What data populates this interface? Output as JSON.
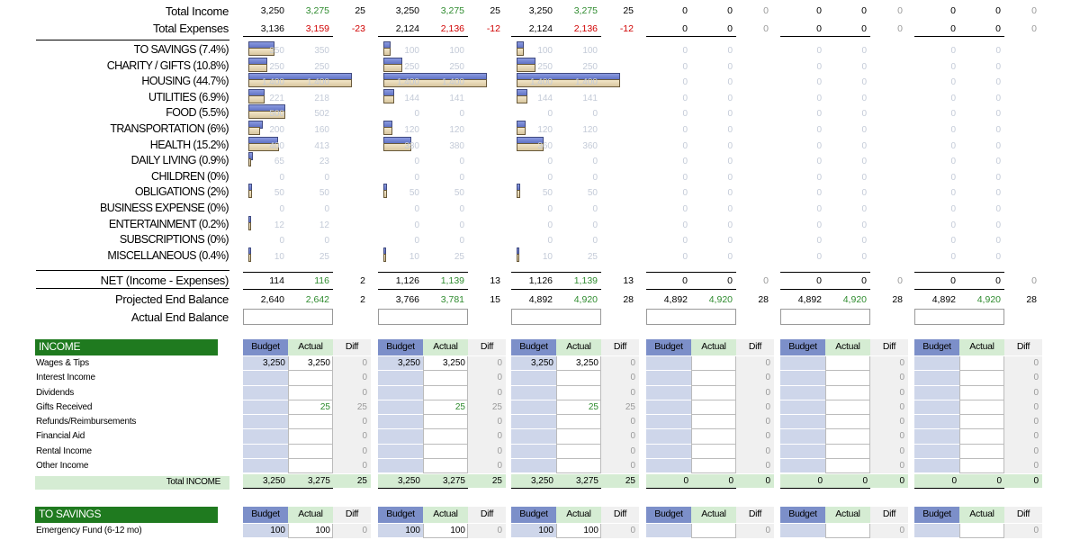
{
  "summary": {
    "total_income_label": "Total Income",
    "total_expenses_label": "Total Expenses",
    "net_label": "NET (Income - Expenses)",
    "projected_label": "Projected End Balance",
    "actual_end_label": "Actual End Balance",
    "months": [
      {
        "income": [
          "3,250",
          "3,275",
          "25"
        ],
        "expenses": [
          "3,136",
          "3,159",
          "-23"
        ],
        "net": [
          "114",
          "116",
          "2"
        ],
        "projected": [
          "2,640",
          "2,642",
          "2"
        ]
      },
      {
        "income": [
          "3,250",
          "3,275",
          "25"
        ],
        "expenses": [
          "2,124",
          "2,136",
          "-12"
        ],
        "net": [
          "1,126",
          "1,139",
          "13"
        ],
        "projected": [
          "3,766",
          "3,781",
          "15"
        ]
      },
      {
        "income": [
          "3,250",
          "3,275",
          "25"
        ],
        "expenses": [
          "2,124",
          "2,136",
          "-12"
        ],
        "net": [
          "1,126",
          "1,139",
          "13"
        ],
        "projected": [
          "4,892",
          "4,920",
          "28"
        ]
      },
      {
        "income": [
          "0",
          "0",
          "0"
        ],
        "expenses": [
          "0",
          "0",
          "0"
        ],
        "net": [
          "0",
          "0",
          "0"
        ],
        "projected": [
          "4,892",
          "4,920",
          "28"
        ]
      },
      {
        "income": [
          "0",
          "0",
          "0"
        ],
        "expenses": [
          "0",
          "0",
          "0"
        ],
        "net": [
          "0",
          "0",
          "0"
        ],
        "projected": [
          "4,892",
          "4,920",
          "28"
        ]
      },
      {
        "income": [
          "0",
          "0",
          "0"
        ],
        "expenses": [
          "0",
          "0",
          "0"
        ],
        "net": [
          "0",
          "0",
          "0"
        ],
        "projected": [
          "4,892",
          "4,920",
          "28"
        ]
      }
    ]
  },
  "categories": [
    {
      "label": "TO SAVINGS (7.4%)",
      "vals": [
        [
          "350",
          "350"
        ],
        [
          "100",
          "100"
        ],
        [
          "100",
          "100"
        ]
      ]
    },
    {
      "label": "CHARITY / GIFTS (10.8%)",
      "vals": [
        [
          "250",
          "250"
        ],
        [
          "250",
          "250"
        ],
        [
          "250",
          "250"
        ]
      ]
    },
    {
      "label": "HOUSING (44.7%)",
      "vals": [
        [
          "1,400",
          "1,400"
        ],
        [
          "1,400",
          "1,400"
        ],
        [
          "1,400",
          "1,400"
        ]
      ]
    },
    {
      "label": "UTILITIES (6.9%)",
      "vals": [
        [
          "221",
          "218"
        ],
        [
          "144",
          "141"
        ],
        [
          "144",
          "141"
        ]
      ]
    },
    {
      "label": "FOOD (5.5%)",
      "vals": [
        [
          "500",
          "502"
        ],
        [
          "0",
          "0"
        ],
        [
          "0",
          "0"
        ]
      ]
    },
    {
      "label": "TRANSPORTATION (6%)",
      "vals": [
        [
          "200",
          "160"
        ],
        [
          "120",
          "120"
        ],
        [
          "120",
          "120"
        ]
      ]
    },
    {
      "label": "HEALTH (15.2%)",
      "vals": [
        [
          "400",
          "413"
        ],
        [
          "380",
          "380"
        ],
        [
          "360",
          "360"
        ]
      ]
    },
    {
      "label": "DAILY LIVING (0.9%)",
      "vals": [
        [
          "65",
          "23"
        ],
        [
          "0",
          "0"
        ],
        [
          "0",
          "0"
        ]
      ]
    },
    {
      "label": "CHILDREN (0%)",
      "vals": [
        [
          "0",
          "0"
        ],
        [
          "0",
          "0"
        ],
        [
          "0",
          "0"
        ]
      ]
    },
    {
      "label": "OBLIGATIONS (2%)",
      "vals": [
        [
          "50",
          "50"
        ],
        [
          "50",
          "50"
        ],
        [
          "50",
          "50"
        ]
      ]
    },
    {
      "label": "BUSINESS EXPENSE (0%)",
      "vals": [
        [
          "0",
          "0"
        ],
        [
          "0",
          "0"
        ],
        [
          "0",
          "0"
        ]
      ]
    },
    {
      "label": "ENTERTAINMENT (0.2%)",
      "vals": [
        [
          "12",
          "12"
        ],
        [
          "0",
          "0"
        ],
        [
          "0",
          "0"
        ]
      ]
    },
    {
      "label": "SUBSCRIPTIONS (0%)",
      "vals": [
        [
          "0",
          "0"
        ],
        [
          "0",
          "0"
        ],
        [
          "0",
          "0"
        ]
      ]
    },
    {
      "label": "MISCELLANEOUS (0.4%)",
      "vals": [
        [
          "10",
          "25"
        ],
        [
          "10",
          "25"
        ],
        [
          "10",
          "25"
        ]
      ]
    }
  ],
  "chart_data": {
    "type": "bar",
    "categories": [
      "TO SAVINGS (7.4%)",
      "CHARITY / GIFTS (10.8%)",
      "HOUSING (44.7%)",
      "UTILITIES (6.9%)",
      "FOOD (5.5%)",
      "TRANSPORTATION (6%)",
      "HEALTH (15.2%)",
      "DAILY LIVING (0.9%)",
      "CHILDREN (0%)",
      "OBLIGATIONS (2%)",
      "BUSINESS EXPENSE (0%)",
      "ENTERTAINMENT (0.2%)",
      "SUBSCRIPTIONS (0%)",
      "MISCELLANEOUS (0.4%)"
    ],
    "months": [
      {
        "budget": [
          350,
          250,
          1400,
          221,
          500,
          200,
          400,
          65,
          0,
          50,
          0,
          12,
          0,
          10
        ],
        "actual": [
          350,
          250,
          1400,
          218,
          502,
          160,
          413,
          23,
          0,
          50,
          0,
          12,
          0,
          25
        ]
      },
      {
        "budget": [
          100,
          250,
          1400,
          144,
          0,
          120,
          380,
          0,
          0,
          50,
          0,
          0,
          0,
          10
        ],
        "actual": [
          100,
          250,
          1400,
          141,
          0,
          120,
          380,
          0,
          0,
          50,
          0,
          0,
          0,
          25
        ]
      },
      {
        "budget": [
          100,
          250,
          1400,
          144,
          0,
          120,
          360,
          0,
          0,
          50,
          0,
          0,
          0,
          10
        ],
        "actual": [
          100,
          250,
          1400,
          141,
          0,
          120,
          360,
          0,
          0,
          50,
          0,
          0,
          0,
          25
        ]
      }
    ],
    "max_value": 1400
  },
  "col_headers": {
    "budget": "Budget",
    "actual": "Actual",
    "diff": "Diff"
  },
  "income": {
    "title": "INCOME",
    "rows": [
      "Wages & Tips",
      "Interest Income",
      "Dividends",
      "Gifts Received",
      "Refunds/Reimbursements",
      "Financial Aid",
      "Rental Income",
      "Other Income"
    ],
    "total_label": "Total INCOME",
    "month_values": [
      {
        "rows": [
          [
            "3,250",
            "3,250",
            "0"
          ],
          [
            "",
            "",
            "0"
          ],
          [
            "",
            "",
            "0"
          ],
          [
            "",
            "25",
            "25"
          ],
          [
            "",
            "",
            "0"
          ],
          [
            "",
            "",
            "0"
          ],
          [
            "",
            "",
            "0"
          ],
          [
            "",
            "",
            "0"
          ]
        ],
        "total": [
          "3,250",
          "3,275",
          "25"
        ]
      },
      {
        "rows": [
          [
            "3,250",
            "3,250",
            "0"
          ],
          [
            "",
            "",
            "0"
          ],
          [
            "",
            "",
            "0"
          ],
          [
            "",
            "25",
            "25"
          ],
          [
            "",
            "",
            "0"
          ],
          [
            "",
            "",
            "0"
          ],
          [
            "",
            "",
            "0"
          ],
          [
            "",
            "",
            "0"
          ]
        ],
        "total": [
          "3,250",
          "3,275",
          "25"
        ]
      },
      {
        "rows": [
          [
            "3,250",
            "3,250",
            "0"
          ],
          [
            "",
            "",
            "0"
          ],
          [
            "",
            "",
            "0"
          ],
          [
            "",
            "25",
            "25"
          ],
          [
            "",
            "",
            "0"
          ],
          [
            "",
            "",
            "0"
          ],
          [
            "",
            "",
            "0"
          ],
          [
            "",
            "",
            "0"
          ]
        ],
        "total": [
          "3,250",
          "3,275",
          "25"
        ]
      },
      {
        "rows": [
          [
            "",
            "",
            "0"
          ],
          [
            "",
            "",
            "0"
          ],
          [
            "",
            "",
            "0"
          ],
          [
            "",
            "",
            "0"
          ],
          [
            "",
            "",
            "0"
          ],
          [
            "",
            "",
            "0"
          ],
          [
            "",
            "",
            "0"
          ],
          [
            "",
            "",
            "0"
          ]
        ],
        "total": [
          "0",
          "0",
          "0"
        ]
      },
      {
        "rows": [
          [
            "",
            "",
            "0"
          ],
          [
            "",
            "",
            "0"
          ],
          [
            "",
            "",
            "0"
          ],
          [
            "",
            "",
            "0"
          ],
          [
            "",
            "",
            "0"
          ],
          [
            "",
            "",
            "0"
          ],
          [
            "",
            "",
            "0"
          ],
          [
            "",
            "",
            "0"
          ]
        ],
        "total": [
          "0",
          "0",
          "0"
        ]
      },
      {
        "rows": [
          [
            "",
            "",
            "0"
          ],
          [
            "",
            "",
            "0"
          ],
          [
            "",
            "",
            "0"
          ],
          [
            "",
            "",
            "0"
          ],
          [
            "",
            "",
            "0"
          ],
          [
            "",
            "",
            "0"
          ],
          [
            "",
            "",
            "0"
          ],
          [
            "",
            "",
            "0"
          ]
        ],
        "total": [
          "0",
          "0",
          "0"
        ]
      }
    ]
  },
  "savings": {
    "title": "TO SAVINGS",
    "rows": [
      "Emergency Fund (6-12 mo)"
    ],
    "month_values": [
      {
        "rows": [
          [
            "100",
            "100",
            "0"
          ]
        ]
      },
      {
        "rows": [
          [
            "100",
            "100",
            "0"
          ]
        ]
      },
      {
        "rows": [
          [
            "100",
            "100",
            "0"
          ]
        ]
      },
      {
        "rows": [
          [
            "",
            "",
            "0"
          ]
        ]
      },
      {
        "rows": [
          [
            "",
            "",
            "0"
          ]
        ]
      },
      {
        "rows": [
          [
            "",
            "",
            "0"
          ]
        ]
      }
    ]
  }
}
